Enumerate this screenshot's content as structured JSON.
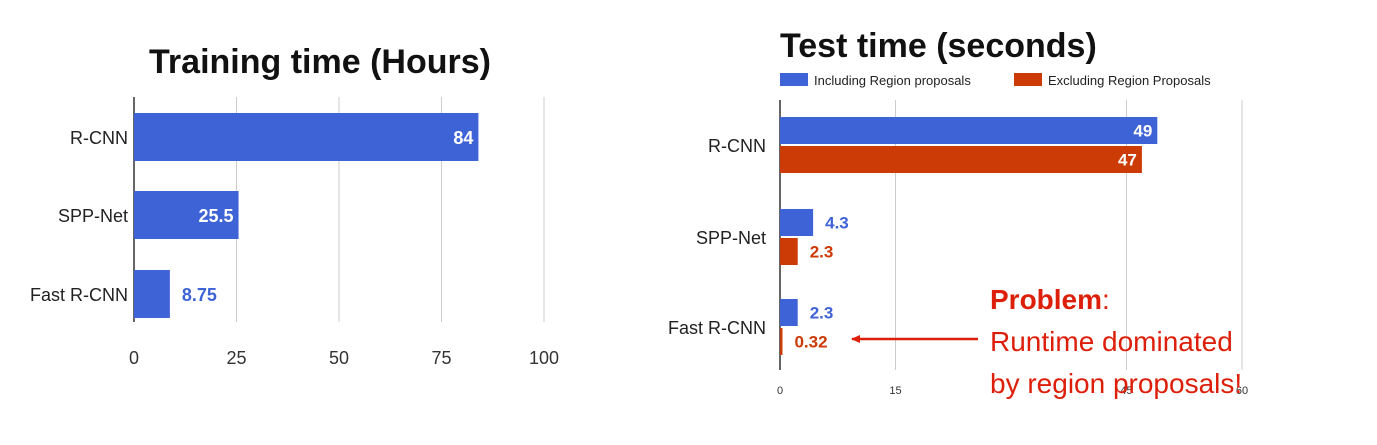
{
  "colors": {
    "blue": "#3e63d6",
    "orange": "#cc3a06",
    "annotation": "#dd1f0a",
    "grid": "#cccccc"
  },
  "chart_data": [
    {
      "type": "bar",
      "orientation": "horizontal",
      "title": "Training time (Hours)",
      "categories": [
        "R-CNN",
        "SPP-Net",
        "Fast R-CNN"
      ],
      "series": [
        {
          "values": [
            84,
            25.5,
            8.75
          ]
        }
      ],
      "data_labels": [
        "84",
        "25.5",
        "8.75"
      ],
      "xlim": [
        0,
        100
      ],
      "xticks": [
        "0",
        "25",
        "50",
        "75",
        "100"
      ],
      "grid": true
    },
    {
      "type": "bar",
      "orientation": "horizontal",
      "title": "Test time (seconds)",
      "categories": [
        "R-CNN",
        "SPP-Net",
        "Fast R-CNN"
      ],
      "series": [
        {
          "name": "Including Region proposals",
          "values": [
            49,
            4.3,
            2.3
          ],
          "labels": [
            "49",
            "4.3",
            "2.3"
          ]
        },
        {
          "name": "Excluding Region Proposals",
          "values": [
            47,
            2.3,
            0.32
          ],
          "labels": [
            "47",
            "2.3",
            "0.32"
          ]
        }
      ],
      "xlim": [
        0,
        60
      ],
      "xticks": [
        "0",
        "15",
        "45",
        "60"
      ],
      "grid": true,
      "legend": "top",
      "annotation": {
        "bold": "Problem",
        "rest": ":",
        "line2": "Runtime dominated",
        "line3": "by region proposals!"
      }
    }
  ]
}
